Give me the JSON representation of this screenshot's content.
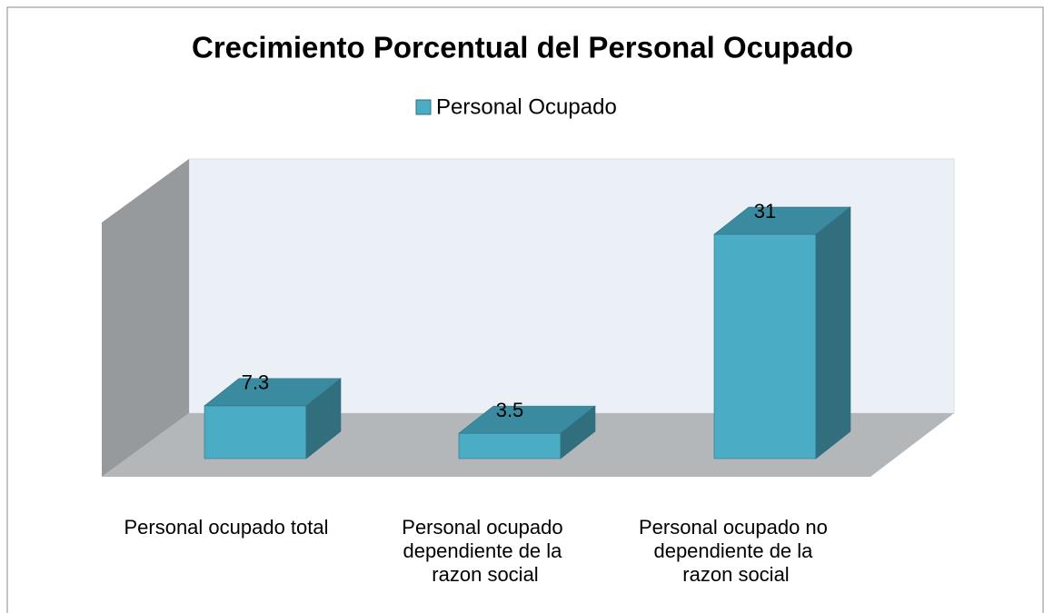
{
  "chart_data": {
    "type": "bar3d",
    "title": "Crecimiento Porcentual del Personal Ocupado",
    "categories": [
      "Personal ocupado total",
      "Personal ocupado dependiente de la razon social",
      "Personal ocupado no dependiente de la razon social"
    ],
    "series": [
      {
        "name": "Personal Ocupado",
        "color": "#4bacc6",
        "values": [
          7.3,
          3.5,
          31
        ]
      }
    ],
    "legend": "top"
  }
}
